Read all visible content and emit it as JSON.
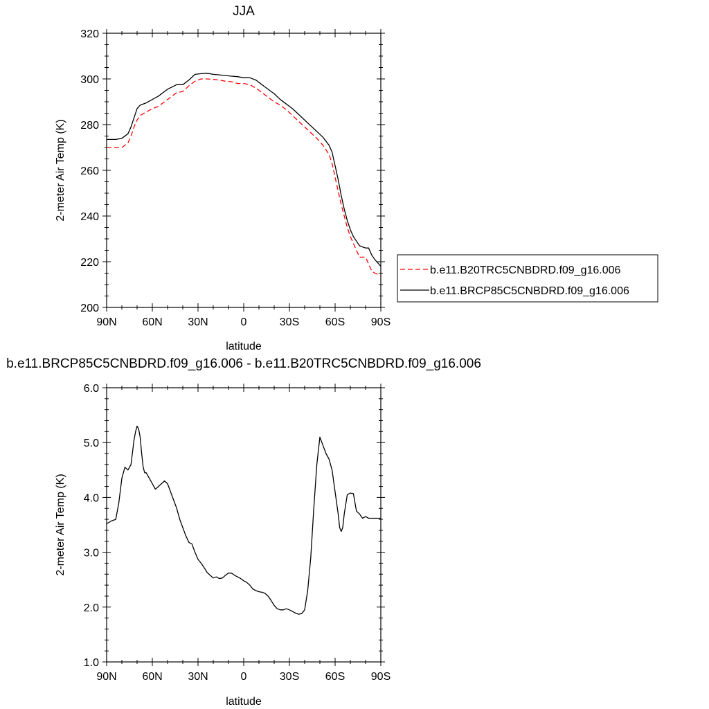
{
  "chart_data": [
    {
      "type": "line",
      "title": "JJA",
      "xlabel": "latitude",
      "ylabel": "2-meter Air Temp (K)",
      "ylim": [
        200,
        320
      ],
      "xlim": [
        90,
        -90
      ],
      "y_ticks": [
        "200",
        "220",
        "240",
        "260",
        "280",
        "300",
        "320"
      ],
      "x_ticks": [
        "90N",
        "60N",
        "30N",
        "0",
        "30S",
        "60S",
        "90S"
      ],
      "legend_position": "right",
      "series": [
        {
          "name": "b.e11.B20TRC5CNBDRD.f09_g16.006",
          "color": "#ff0000",
          "dash": "dashed",
          "x": [
            90,
            84,
            80,
            76,
            74,
            72,
            70,
            68,
            64,
            60,
            56,
            50,
            44,
            40,
            36,
            32,
            28,
            24,
            20,
            16,
            12,
            8,
            4,
            0,
            -4,
            -8,
            -12,
            -16,
            -20,
            -24,
            -28,
            -32,
            -36,
            -40,
            -44,
            -48,
            -52,
            -56,
            -58,
            -60,
            -62,
            -64,
            -66,
            -68,
            -70,
            -72,
            -74,
            -76,
            -78,
            -80,
            -82,
            -84,
            -86,
            -88,
            -90
          ],
          "y": [
            270,
            270,
            270,
            272,
            275,
            279,
            282,
            284,
            285.5,
            287,
            288,
            291,
            294,
            294.5,
            297,
            299,
            300,
            300,
            299.8,
            299.5,
            299,
            298.8,
            298,
            298,
            297.5,
            296,
            294,
            292,
            290,
            288.5,
            286.5,
            284,
            281.5,
            279,
            276.5,
            274,
            271,
            267,
            263,
            257,
            251,
            245,
            240,
            235,
            231,
            228,
            225,
            222,
            222,
            222,
            219,
            216,
            215,
            214.5,
            214
          ]
        },
        {
          "name": "b.e11.BRCP85C5CNBDRD.f09_g16.006",
          "color": "#000000",
          "dash": "solid",
          "x": [
            90,
            84,
            80,
            76,
            74,
            72,
            70,
            68,
            64,
            60,
            56,
            50,
            44,
            40,
            36,
            32,
            28,
            24,
            20,
            16,
            12,
            8,
            4,
            0,
            -4,
            -8,
            -12,
            -16,
            -20,
            -24,
            -28,
            -32,
            -36,
            -40,
            -44,
            -48,
            -52,
            -56,
            -58,
            -60,
            -62,
            -64,
            -66,
            -68,
            -70,
            -72,
            -74,
            -76,
            -78,
            -80,
            -82,
            -84,
            -86,
            -88,
            -90
          ],
          "y": [
            273.5,
            273.5,
            274,
            276,
            279,
            283,
            287,
            288.5,
            289.5,
            291,
            292.5,
            295.5,
            297.5,
            297.5,
            299.5,
            302,
            302.3,
            302.5,
            302,
            301.8,
            301.5,
            301.2,
            301,
            300.5,
            300.5,
            299.5,
            297.5,
            295.5,
            293.5,
            291,
            289,
            287,
            284.5,
            282,
            279.5,
            277,
            274.5,
            271,
            268,
            262,
            256,
            249,
            243,
            238,
            234,
            231,
            229,
            227,
            226.5,
            226,
            226,
            223,
            221,
            219.5,
            218
          ]
        }
      ]
    },
    {
      "type": "line",
      "title": "b.e11.BRCP85C5CNBDRD.f09_g16.006 - b.e11.B20TRC5CNBDRD.f09_g16.006",
      "xlabel": "latitude",
      "ylabel": "2-meter Air Temp (K)",
      "ylim": [
        1.0,
        6.0
      ],
      "xlim": [
        90,
        -90
      ],
      "y_ticks": [
        "1.0",
        "2.0",
        "3.0",
        "4.0",
        "5.0",
        "6.0"
      ],
      "x_ticks": [
        "90N",
        "60N",
        "30N",
        "0",
        "30S",
        "60S",
        "90S"
      ],
      "series": [
        {
          "color": "#000000",
          "dash": "solid",
          "x": [
            90,
            87,
            84,
            82,
            80,
            78,
            76,
            74,
            72,
            71,
            70,
            69,
            68,
            67,
            66,
            65,
            64,
            62,
            60,
            58,
            56,
            54,
            52,
            50,
            48,
            46,
            44,
            42,
            40,
            38,
            36,
            34,
            32,
            30,
            28,
            26,
            24,
            22,
            20,
            18,
            16,
            14,
            12,
            10,
            8,
            6,
            4,
            2,
            0,
            -2,
            -4,
            -6,
            -8,
            -10,
            -12,
            -14,
            -16,
            -18,
            -20,
            -22,
            -24,
            -26,
            -28,
            -30,
            -32,
            -34,
            -36,
            -38,
            -40,
            -42,
            -44,
            -46,
            -48,
            -50,
            -52,
            -54,
            -56,
            -58,
            -60,
            -62,
            -63,
            -64,
            -65,
            -66,
            -68,
            -70,
            -72,
            -74,
            -76,
            -78,
            -80,
            -82,
            -84,
            -86,
            -88,
            -90
          ],
          "y": [
            3.52,
            3.57,
            3.6,
            3.9,
            4.35,
            4.55,
            4.5,
            4.6,
            5.05,
            5.2,
            5.3,
            5.25,
            5.1,
            4.8,
            4.55,
            4.45,
            4.45,
            4.35,
            4.25,
            4.15,
            4.2,
            4.25,
            4.3,
            4.25,
            4.1,
            3.95,
            3.8,
            3.6,
            3.45,
            3.3,
            3.18,
            3.15,
            3.0,
            2.87,
            2.8,
            2.72,
            2.63,
            2.58,
            2.53,
            2.55,
            2.52,
            2.53,
            2.58,
            2.62,
            2.62,
            2.58,
            2.55,
            2.52,
            2.48,
            2.45,
            2.4,
            2.33,
            2.3,
            2.28,
            2.27,
            2.25,
            2.2,
            2.12,
            2.03,
            1.97,
            1.95,
            1.95,
            1.97,
            1.95,
            1.92,
            1.89,
            1.87,
            1.88,
            1.95,
            2.3,
            2.9,
            3.8,
            4.6,
            5.1,
            4.95,
            4.8,
            4.7,
            4.5,
            4.1,
            3.7,
            3.45,
            3.38,
            3.45,
            3.7,
            4.05,
            4.08,
            4.07,
            3.75,
            3.7,
            3.62,
            3.65,
            3.62,
            3.62,
            3.62,
            3.62,
            3.62
          ]
        }
      ]
    }
  ]
}
